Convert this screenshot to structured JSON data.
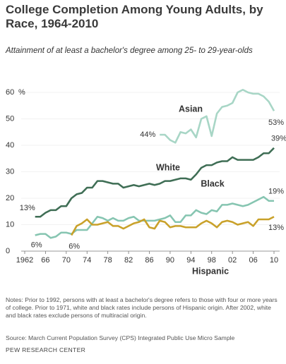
{
  "chart_data": {
    "type": "line",
    "title": "College Completion Among Young Adults, by Race, 1964-2010",
    "subtitle": "Attainment of at least a bachelor's degree among 25- to 29-year-olds",
    "y_unit": "%",
    "x": [
      1964,
      1965,
      1966,
      1967,
      1968,
      1969,
      1970,
      1971,
      1972,
      1973,
      1974,
      1975,
      1976,
      1977,
      1978,
      1979,
      1980,
      1981,
      1982,
      1983,
      1984,
      1985,
      1986,
      1987,
      1988,
      1989,
      1990,
      1991,
      1992,
      1993,
      1994,
      1995,
      1996,
      1997,
      1998,
      1999,
      2000,
      2001,
      2002,
      2003,
      2004,
      2005,
      2006,
      2007,
      2008,
      2009,
      2010
    ],
    "xlim": [
      1962,
      2010
    ],
    "xticks": [
      1962,
      {
        "value": 1966,
        "label": "66"
      },
      {
        "value": 1970,
        "label": "70"
      },
      {
        "value": 1974,
        "label": "74"
      },
      {
        "value": 1978,
        "label": "78"
      },
      {
        "value": 1982,
        "label": "82"
      },
      {
        "value": 1986,
        "label": "86"
      },
      {
        "value": 1990,
        "label": "90"
      },
      {
        "value": 1994,
        "label": "94"
      },
      {
        "value": 1998,
        "label": "98"
      },
      {
        "value": 2002,
        "label": "02"
      },
      {
        "value": 2006,
        "label": "06"
      },
      {
        "value": 2010,
        "label": "10"
      }
    ],
    "ylim": [
      0,
      60
    ],
    "yticks": [
      0,
      10,
      20,
      30,
      40,
      50,
      60
    ],
    "series": [
      {
        "name": "Asian",
        "color": "#a8d6c6",
        "values": [
          null,
          null,
          null,
          null,
          null,
          null,
          null,
          null,
          null,
          null,
          null,
          null,
          null,
          null,
          null,
          null,
          null,
          null,
          null,
          null,
          null,
          null,
          null,
          null,
          44,
          44,
          42,
          41,
          45,
          44.5,
          46,
          43,
          50,
          51,
          43.5,
          52,
          54.5,
          55,
          56,
          60,
          61,
          60,
          59.5,
          59.5,
          58.5,
          56.5,
          53
        ],
        "value_labels": [
          null,
          null,
          null,
          null,
          null,
          null,
          null,
          null,
          null,
          null,
          null,
          null,
          null,
          null,
          null,
          null,
          null,
          null,
          null,
          null,
          null,
          null,
          null,
          null,
          "44%",
          null,
          null,
          null,
          null,
          null,
          null,
          null,
          null,
          null,
          null,
          null,
          null,
          null,
          null,
          null,
          null,
          null,
          null,
          null,
          null,
          null,
          "53%"
        ]
      },
      {
        "name": "White",
        "color": "#3f6e55",
        "values": [
          13,
          13,
          14.5,
          15.5,
          15.5,
          17,
          17,
          20,
          21.5,
          22,
          24,
          24,
          26.5,
          26.5,
          26,
          25.5,
          25.5,
          24,
          24.5,
          25,
          24.5,
          25,
          25.5,
          25,
          25.5,
          26.5,
          26.5,
          27,
          27.5,
          27.5,
          27,
          29,
          31.5,
          32.5,
          32.5,
          33.5,
          34,
          34,
          35.5,
          34.5,
          34.5,
          34.5,
          34.5,
          35.5,
          37,
          37,
          39
        ],
        "value_labels": [
          "13%",
          null,
          null,
          null,
          null,
          null,
          null,
          null,
          null,
          null,
          null,
          null,
          null,
          null,
          null,
          null,
          null,
          null,
          null,
          null,
          null,
          null,
          null,
          null,
          null,
          null,
          null,
          null,
          null,
          null,
          null,
          null,
          null,
          null,
          null,
          null,
          null,
          null,
          null,
          null,
          null,
          null,
          null,
          null,
          null,
          null,
          "39%"
        ]
      },
      {
        "name": "Black",
        "color": "#86c5b1",
        "values": [
          6,
          6.5,
          6.5,
          5,
          5.5,
          7,
          7,
          6.5,
          8,
          8,
          8,
          10.5,
          13,
          12.5,
          11.5,
          12.5,
          11.5,
          11.5,
          12.5,
          13,
          11.5,
          11.5,
          11.5,
          11.5,
          12,
          12.5,
          13.5,
          11,
          11,
          13.5,
          13.5,
          15.5,
          14.5,
          14,
          15.5,
          15,
          17.5,
          17.5,
          18,
          17.5,
          17,
          17.5,
          18.5,
          19.5,
          20.5,
          19,
          19
        ],
        "value_labels": [
          "6%",
          null,
          null,
          null,
          null,
          null,
          null,
          null,
          null,
          null,
          null,
          null,
          null,
          null,
          null,
          null,
          null,
          null,
          null,
          null,
          null,
          null,
          null,
          null,
          null,
          null,
          null,
          null,
          null,
          null,
          null,
          null,
          null,
          null,
          null,
          null,
          null,
          null,
          null,
          null,
          null,
          null,
          null,
          null,
          null,
          null,
          "19%"
        ]
      },
      {
        "name": "Hispanic",
        "color": "#c9a12a",
        "values": [
          null,
          null,
          null,
          null,
          null,
          null,
          null,
          6,
          9.5,
          10.5,
          12,
          10,
          10,
          10.5,
          11,
          9.5,
          9.5,
          8.5,
          9.5,
          10.5,
          11,
          12,
          9,
          8.5,
          11.5,
          11,
          9,
          9.5,
          9.5,
          9,
          9,
          9,
          10.5,
          11.5,
          10.5,
          9,
          11,
          11.5,
          11,
          10,
          10.5,
          11,
          9.5,
          12,
          12,
          12,
          13
        ],
        "value_labels": [
          null,
          null,
          null,
          null,
          null,
          null,
          null,
          "6%",
          null,
          null,
          null,
          null,
          null,
          null,
          null,
          null,
          null,
          null,
          null,
          null,
          null,
          null,
          null,
          null,
          null,
          null,
          null,
          null,
          null,
          null,
          null,
          null,
          null,
          null,
          null,
          null,
          null,
          null,
          null,
          null,
          null,
          null,
          null,
          null,
          null,
          null,
          "13%"
        ]
      }
    ],
    "notes": "Notes: Prior to 1992, persons with at least a bachelor's degree refers to those with four or more years of college. Prior to 1971, white and black rates include persons of Hispanic origin. After 2002, white and black rates exclude persons of multiracial origin.",
    "source": "Source: March Current Population Survey (CPS) Integrated Public Use Micro Sample",
    "footer": "PEW RESEARCH CENTER"
  }
}
